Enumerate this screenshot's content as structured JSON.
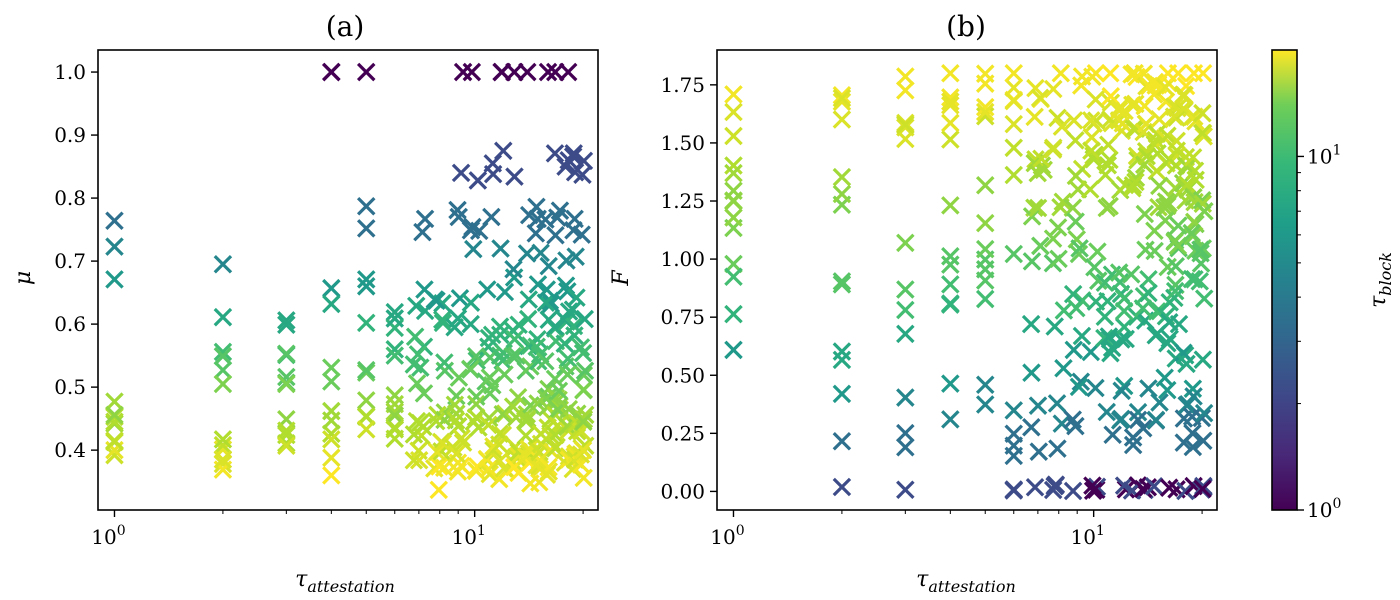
{
  "chart_data": [
    {
      "type": "scatter",
      "title": "(a)",
      "xlabel": "τ_attestation",
      "ylabel": "μ",
      "xscale": "log",
      "xlim": [
        0.9,
        22
      ],
      "ylim": [
        0.305,
        1.035
      ],
      "xticks": [
        1,
        10
      ],
      "xtick_labels": [
        "10^0",
        "10^1"
      ],
      "yticks": [
        0.4,
        0.5,
        0.6,
        0.7,
        0.8,
        0.9,
        1.0
      ],
      "ytick_labels": [
        "0.4",
        "0.5",
        "0.6",
        "0.7",
        "0.8",
        "0.9",
        "1.0"
      ],
      "marker": "x",
      "color_by": "τ_block",
      "note_points": "Each marker is one run: x = τ_attestation (integers 1–20), y = μ, color = τ_block (log scale, 1–20).",
      "points": []
    },
    {
      "type": "scatter",
      "title": "(b)",
      "xlabel": "τ_attestation",
      "ylabel": "F",
      "xscale": "log",
      "xlim": [
        0.9,
        22
      ],
      "ylim": [
        -0.08,
        1.9
      ],
      "xticks": [
        1,
        10
      ],
      "xtick_labels": [
        "10^0",
        "10^1"
      ],
      "yticks": [
        0.0,
        0.25,
        0.5,
        0.75,
        1.0,
        1.25,
        1.5,
        1.75
      ],
      "ytick_labels": [
        "0.00",
        "0.25",
        "0.50",
        "0.75",
        "1.00",
        "1.25",
        "1.50",
        "1.75"
      ],
      "marker": "x",
      "color_by": "τ_block",
      "points": []
    }
  ],
  "colorbar": {
    "label": "τ_block",
    "scale": "log",
    "colormap": "viridis",
    "range": [
      1,
      20
    ],
    "ticks": [
      1,
      10
    ],
    "tick_labels": [
      "10^0",
      "10^1"
    ]
  }
}
